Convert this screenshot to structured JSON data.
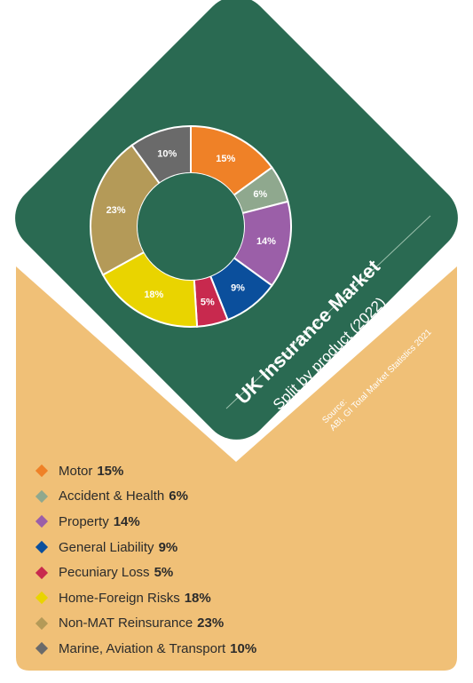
{
  "colors": {
    "background_shape": "#f0c077",
    "panel": "#2a6a52",
    "panel_text": "#ffffff"
  },
  "chart_data": {
    "type": "pie",
    "donut": true,
    "title": "UK Insurance Market",
    "subtitle": "Split by product (2022)",
    "source_label": "Source:",
    "source_text": "ABI, GI Total Market Statistics 2021",
    "categories": [
      "Motor",
      "Accident & Health",
      "Property",
      "General Liability",
      "Pecuniary Loss",
      "Home-Foreign Risks",
      "Non-MAT Reinsurance",
      "Marine, Aviation & Transport"
    ],
    "values": [
      15,
      6,
      14,
      9,
      5,
      18,
      23,
      10
    ],
    "labels": [
      "15%",
      "6%",
      "14%",
      "9%",
      "5%",
      "18%",
      "23%",
      "10%"
    ],
    "colors": [
      "#ef8127",
      "#8fa88e",
      "#9b5fa8",
      "#0b4f9c",
      "#c8294e",
      "#e9d400",
      "#b49a58",
      "#6a6a6a"
    ],
    "legend_position": "bottom-left"
  }
}
